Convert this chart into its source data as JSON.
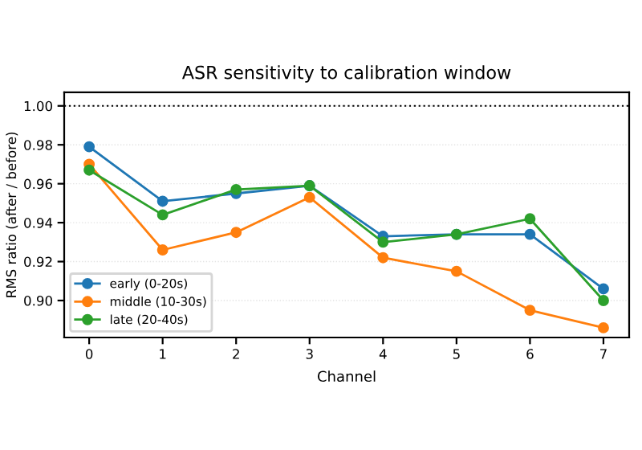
{
  "chart_data": {
    "type": "line",
    "title": "ASR sensitivity to calibration window",
    "xlabel": "Channel",
    "ylabel": "RMS ratio (after / before)",
    "x": [
      0,
      1,
      2,
      3,
      4,
      5,
      6,
      7
    ],
    "series": [
      {
        "name": "early (0-20s)",
        "color": "#1f77b4",
        "values": [
          0.979,
          0.951,
          0.955,
          0.959,
          0.933,
          0.934,
          0.934,
          0.906
        ]
      },
      {
        "name": "middle (10-30s)",
        "color": "#ff7f0e",
        "values": [
          0.97,
          0.926,
          0.935,
          0.953,
          0.922,
          0.915,
          0.895,
          0.886
        ]
      },
      {
        "name": "late (20-40s)",
        "color": "#2ca02c",
        "values": [
          0.967,
          0.944,
          0.957,
          0.959,
          0.93,
          0.934,
          0.942,
          0.9
        ]
      }
    ],
    "xlim": [
      -0.34,
      7.35
    ],
    "ylim": [
      0.881,
      1.007
    ],
    "xticks": [
      0,
      1,
      2,
      3,
      4,
      5,
      6,
      7
    ],
    "yticks": [
      {
        "value": 0.9,
        "label": "0.90"
      },
      0.92,
      0.94,
      0.96,
      0.98,
      {
        "value": 1.0,
        "label": "1.00"
      }
    ],
    "ref_lines": [
      {
        "axis": "y",
        "value": 1.0,
        "color": "#000000",
        "line_style": "dotted"
      }
    ],
    "grid": "y",
    "legend": "bottom left",
    "marker": "circle",
    "line_style": "solid"
  }
}
